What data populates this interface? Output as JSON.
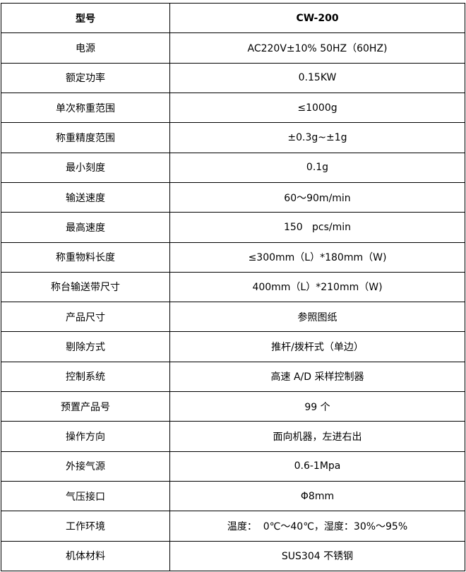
{
  "header": {
    "label": "型号",
    "value": "CW-200"
  },
  "rows": [
    {
      "label": "电源",
      "value": "AC220V±10% 50HZ（60HZ)"
    },
    {
      "label": "额定功率",
      "value": "0.15KW"
    },
    {
      "label": "单次称重范围",
      "value": "≤1000g"
    },
    {
      "label": "称重精度范围",
      "value": "±0.3g~±1g"
    },
    {
      "label": "最小刻度",
      "value": "0.1g"
    },
    {
      "label": "输送速度",
      "value": "60～90m/min"
    },
    {
      "label": "最高速度",
      "value": "150   pcs/min"
    },
    {
      "label": "称重物料长度",
      "value": "≤300mm（L）*180mm（W)"
    },
    {
      "label": "称台输送带尺寸",
      "value": "400mm（L）*210mm（W)"
    },
    {
      "label": "产品尺寸",
      "value": "参照图纸"
    },
    {
      "label": "剔除方式",
      "value": "推杆/拨杆式（单边）"
    },
    {
      "label": "控制系统",
      "value": "高速 A/D 采样控制器"
    },
    {
      "label": "预置产品号",
      "value": "99 个"
    },
    {
      "label": "操作方向",
      "value": "面向机器，左进右出"
    },
    {
      "label": "外接气源",
      "value": "0.6-1Mpa"
    },
    {
      "label": "气压接口",
      "value": "Φ8mm"
    },
    {
      "label": "工作环境",
      "value": "温度：  0℃～40℃，湿度：30%～95%"
    },
    {
      "label": "机体材料",
      "value": "SUS304 不锈钢"
    }
  ]
}
